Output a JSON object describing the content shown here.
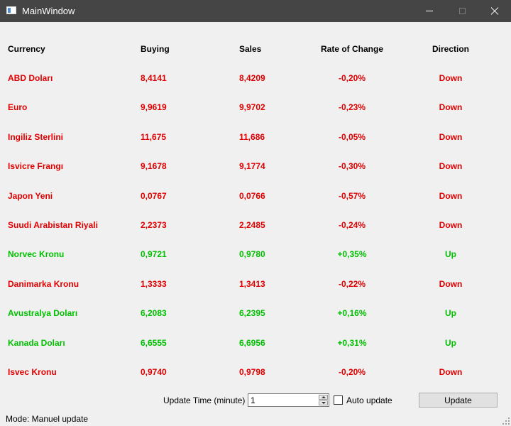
{
  "window": {
    "title": "MainWindow"
  },
  "table": {
    "headers": {
      "currency": "Currency",
      "buying": "Buying",
      "sales": "Sales",
      "rate": "Rate of Change",
      "direction": "Direction"
    },
    "rows": [
      {
        "currency": "ABD Doları",
        "buying": "8,4141",
        "sales": "8,4209",
        "rate": "-0,20%",
        "direction": "Down"
      },
      {
        "currency": "Euro",
        "buying": "9,9619",
        "sales": "9,9702",
        "rate": "-0,23%",
        "direction": "Down"
      },
      {
        "currency": "Ingiliz Sterlini",
        "buying": "11,675",
        "sales": "11,686",
        "rate": "-0,05%",
        "direction": "Down"
      },
      {
        "currency": "Isvicre Frangı",
        "buying": "9,1678",
        "sales": "9,1774",
        "rate": "-0,30%",
        "direction": "Down"
      },
      {
        "currency": "Japon Yeni",
        "buying": "0,0767",
        "sales": "0,0766",
        "rate": "-0,57%",
        "direction": "Down"
      },
      {
        "currency": "Suudi Arabistan Riyali",
        "buying": "2,2373",
        "sales": "2,2485",
        "rate": "-0,24%",
        "direction": "Down"
      },
      {
        "currency": "Norvec Kronu",
        "buying": "0,9721",
        "sales": "0,9780",
        "rate": "+0,35%",
        "direction": "Up"
      },
      {
        "currency": "Danimarka Kronu",
        "buying": "1,3333",
        "sales": "1,3413",
        "rate": "-0,22%",
        "direction": "Down"
      },
      {
        "currency": "Avustralya Doları",
        "buying": "6,2083",
        "sales": "6,2395",
        "rate": "+0,16%",
        "direction": "Up"
      },
      {
        "currency": "Kanada Doları",
        "buying": "6,6555",
        "sales": "6,6956",
        "rate": "+0,31%",
        "direction": "Up"
      },
      {
        "currency": "Isvec Kronu",
        "buying": "0,9740",
        "sales": "0,9798",
        "rate": "-0,20%",
        "direction": "Down"
      }
    ]
  },
  "controls": {
    "update_time_label": "Update Time (minute)",
    "update_time_value": "1",
    "auto_update_label": "Auto update",
    "update_button": "Update"
  },
  "status": {
    "mode": "Mode: Manuel update"
  },
  "colors": {
    "down": "#e00000",
    "up": "#00c000",
    "titlebar": "#454545"
  }
}
